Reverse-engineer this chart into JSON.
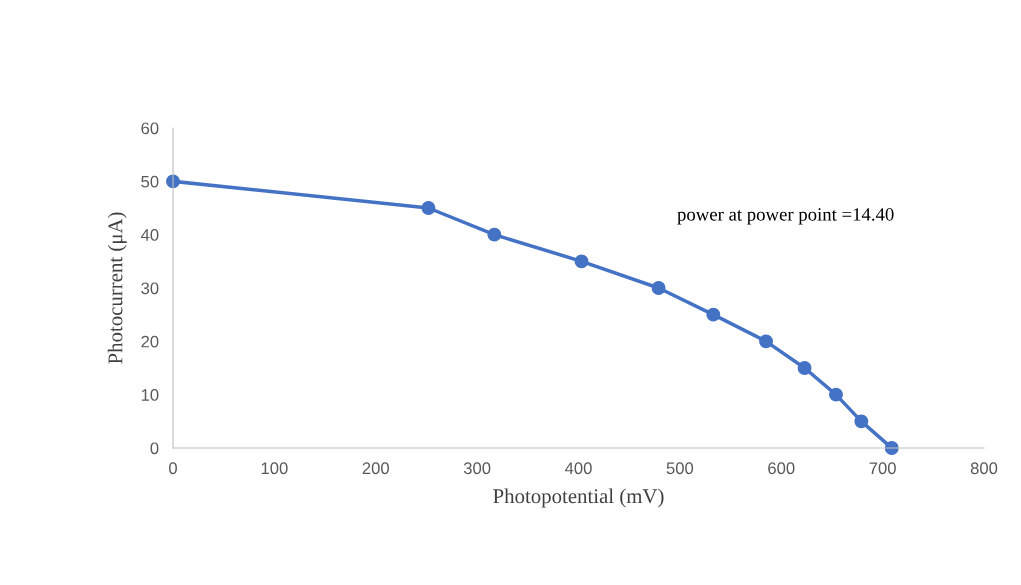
{
  "chart_data": {
    "type": "line",
    "xlabel": "Photopotential (mV)",
    "ylabel": "Photocurrent (μA)",
    "x": [
      0,
      252,
      317,
      403,
      479,
      533,
      585,
      623,
      654,
      679,
      709
    ],
    "series": [
      {
        "color": "#4472c4",
        "values": [
          50,
          45,
          40,
          35,
          30,
          25,
          20,
          15,
          10,
          5,
          0
        ]
      }
    ],
    "xlim": [
      0,
      800
    ],
    "xticks": [
      0,
      100,
      200,
      300,
      400,
      500,
      600,
      700,
      800
    ],
    "ylim": [
      0,
      60
    ],
    "yticks": [
      0,
      10,
      20,
      30,
      40,
      50,
      60
    ],
    "marker": "circle",
    "grid": false,
    "legend": false,
    "annotations": [
      "power at power point =14.40"
    ]
  }
}
